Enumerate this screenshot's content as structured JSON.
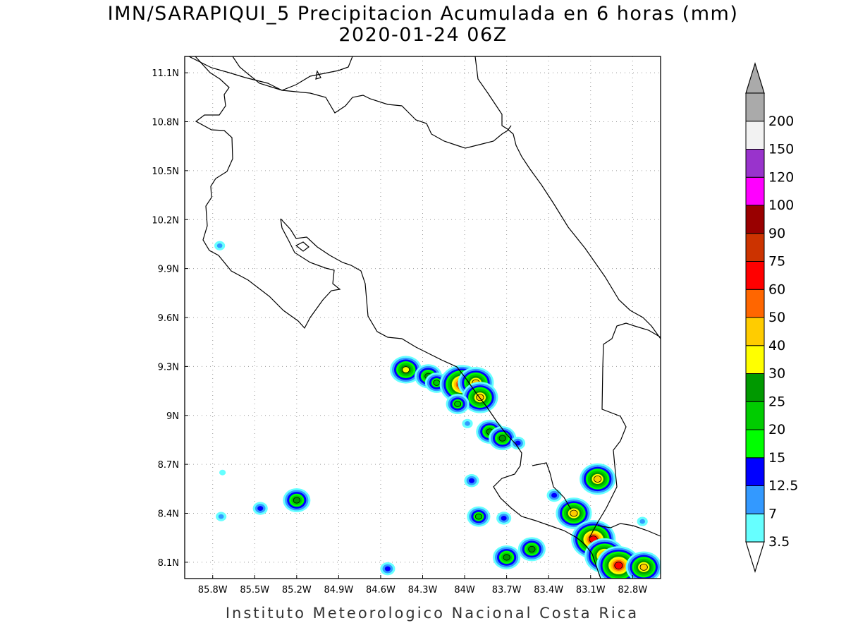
{
  "header": {
    "title": "IMN/SARAPIQUI_5 Precipitacion Acumulada en 6 horas (mm)",
    "subtitle": "2020-01-24 06Z"
  },
  "footer": {
    "credit": "Instituto Meteorologico Nacional Costa Rica"
  },
  "map": {
    "region": "Costa Rica",
    "lon_range": [
      -86.0,
      -82.6
    ],
    "lat_range": [
      8.0,
      11.2
    ],
    "grid": "dotted",
    "lon_ticks": [
      {
        "value": -85.8,
        "label": "85.8W"
      },
      {
        "value": -85.5,
        "label": "85.5W"
      },
      {
        "value": -85.2,
        "label": "85.2W"
      },
      {
        "value": -84.9,
        "label": "84.9W"
      },
      {
        "value": -84.6,
        "label": "84.6W"
      },
      {
        "value": -84.3,
        "label": "84.3W"
      },
      {
        "value": -84.0,
        "label": "84W"
      },
      {
        "value": -83.7,
        "label": "83.7W"
      },
      {
        "value": -83.4,
        "label": "83.4W"
      },
      {
        "value": -83.1,
        "label": "83.1W"
      },
      {
        "value": -82.8,
        "label": "82.8W"
      }
    ],
    "lat_ticks": [
      {
        "value": 8.1,
        "label": "8.1N"
      },
      {
        "value": 8.4,
        "label": "8.4N"
      },
      {
        "value": 8.7,
        "label": "8.7N"
      },
      {
        "value": 9.0,
        "label": "9N"
      },
      {
        "value": 9.3,
        "label": "9.3N"
      },
      {
        "value": 9.6,
        "label": "9.6N"
      },
      {
        "value": 9.9,
        "label": "9.9N"
      },
      {
        "value": 10.2,
        "label": "10.2N"
      },
      {
        "value": 10.5,
        "label": "10.5N"
      },
      {
        "value": 10.8,
        "label": "10.8N"
      },
      {
        "value": 11.1,
        "label": "11.1N"
      }
    ]
  },
  "colorbar": {
    "levels": [
      {
        "label": "3.5",
        "color": "#66ffff"
      },
      {
        "label": "7",
        "color": "#3399ff"
      },
      {
        "label": "12.5",
        "color": "#0000ff"
      },
      {
        "label": "15",
        "color": "#00ff00"
      },
      {
        "label": "20",
        "color": "#00cc00"
      },
      {
        "label": "25",
        "color": "#009900"
      },
      {
        "label": "30",
        "color": "#ffff00"
      },
      {
        "label": "40",
        "color": "#ffcc00"
      },
      {
        "label": "50",
        "color": "#ff6600"
      },
      {
        "label": "60",
        "color": "#ff0000"
      },
      {
        "label": "75",
        "color": "#cc3300"
      },
      {
        "label": "90",
        "color": "#990000"
      },
      {
        "label": "100",
        "color": "#ff00ff"
      },
      {
        "label": "120",
        "color": "#9933cc"
      },
      {
        "label": "150",
        "color": "#f2f2f2"
      },
      {
        "label": "200",
        "color": "#aaaaaa"
      }
    ],
    "under_color": "#ffffff",
    "over_color": "#aaaaaa"
  },
  "precip_cells": [
    {
      "lon": -85.75,
      "lat": 10.04,
      "max_mm": 7
    },
    {
      "lon": -85.73,
      "lat": 8.65,
      "max_mm": 3.5
    },
    {
      "lon": -85.74,
      "lat": 8.38,
      "max_mm": 7
    },
    {
      "lon": -85.46,
      "lat": 8.43,
      "max_mm": 12.5
    },
    {
      "lon": -85.2,
      "lat": 8.48,
      "max_mm": 25
    },
    {
      "lon": -84.55,
      "lat": 8.06,
      "max_mm": 12.5
    },
    {
      "lon": -84.42,
      "lat": 9.28,
      "max_mm": 30
    },
    {
      "lon": -84.26,
      "lat": 9.24,
      "max_mm": 25
    },
    {
      "lon": -84.2,
      "lat": 9.2,
      "max_mm": 20
    },
    {
      "lon": -84.02,
      "lat": 9.19,
      "max_mm": 60
    },
    {
      "lon": -83.92,
      "lat": 9.2,
      "max_mm": 40
    },
    {
      "lon": -83.89,
      "lat": 9.11,
      "max_mm": 40
    },
    {
      "lon": -84.05,
      "lat": 9.07,
      "max_mm": 20
    },
    {
      "lon": -83.98,
      "lat": 8.95,
      "max_mm": 7
    },
    {
      "lon": -83.82,
      "lat": 8.9,
      "max_mm": 25
    },
    {
      "lon": -83.73,
      "lat": 8.86,
      "max_mm": 25
    },
    {
      "lon": -83.62,
      "lat": 8.83,
      "max_mm": 12.5
    },
    {
      "lon": -83.95,
      "lat": 8.6,
      "max_mm": 12.5
    },
    {
      "lon": -83.9,
      "lat": 8.38,
      "max_mm": 20
    },
    {
      "lon": -83.72,
      "lat": 8.37,
      "max_mm": 12.5
    },
    {
      "lon": -83.7,
      "lat": 8.13,
      "max_mm": 25
    },
    {
      "lon": -83.52,
      "lat": 8.18,
      "max_mm": 25
    },
    {
      "lon": -83.36,
      "lat": 8.51,
      "max_mm": 12.5
    },
    {
      "lon": -83.22,
      "lat": 8.4,
      "max_mm": 40
    },
    {
      "lon": -83.05,
      "lat": 8.61,
      "max_mm": 40
    },
    {
      "lon": -83.08,
      "lat": 8.24,
      "max_mm": 60
    },
    {
      "lon": -83.0,
      "lat": 8.14,
      "max_mm": 50
    },
    {
      "lon": -82.9,
      "lat": 8.08,
      "max_mm": 60
    },
    {
      "lon": -82.72,
      "lat": 8.07,
      "max_mm": 40
    },
    {
      "lon": -82.73,
      "lat": 8.35,
      "max_mm": 7
    }
  ]
}
